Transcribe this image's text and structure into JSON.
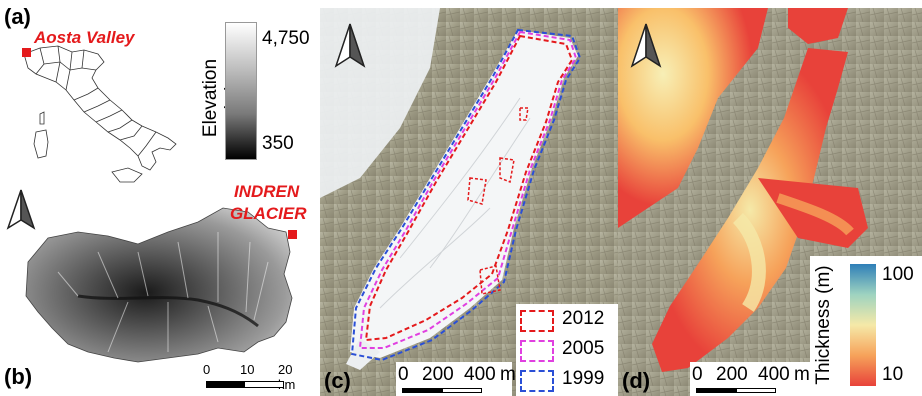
{
  "panels": {
    "a": {
      "label": "(a)",
      "region_label": "Aosta Valley",
      "region_marker_color": "#e41a1c"
    },
    "b": {
      "label": "(b)",
      "glacier_label_line1": "INDREN",
      "glacier_label_line2": "GLACIER",
      "scalebar": {
        "ticks": [
          "0",
          "10",
          "20 km"
        ]
      },
      "north_arrow": "north-arrow-icon"
    },
    "c": {
      "label": "(c)",
      "scalebar": {
        "ticks": [
          "0",
          "200",
          "400",
          "m"
        ]
      },
      "legend": [
        {
          "year": "2012",
          "color": "#e41a1c"
        },
        {
          "year": "2005",
          "color": "#e040e0"
        },
        {
          "year": "1999",
          "color": "#2a4fd6"
        }
      ],
      "north_arrow": "north-arrow-icon"
    },
    "d": {
      "label": "(d)",
      "scalebar": {
        "ticks": [
          "0",
          "200",
          "400",
          "m"
        ]
      },
      "north_arrow": "north-arrow-icon"
    }
  },
  "elevation_colorbar": {
    "title": "Elevation (m)",
    "max_label": "4,750",
    "min_label": "350",
    "color_top": "#ffffff",
    "color_bottom": "#000000"
  },
  "thickness_colorbar": {
    "title": "Thickness (m)",
    "max_label": "100",
    "min_label": "10",
    "colors": [
      "#2f7fb8",
      "#9ed3c0",
      "#f5e9a8",
      "#f6a25a",
      "#e8423a"
    ]
  }
}
